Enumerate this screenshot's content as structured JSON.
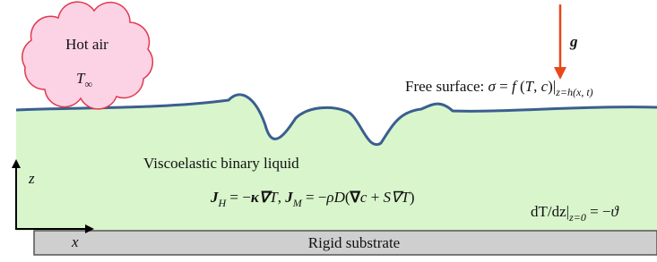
{
  "cloud": {
    "label": "Hot air",
    "symbol": "T",
    "subscript": "∞"
  },
  "gravity": {
    "label": "g"
  },
  "free_surface": {
    "label": "Free surface: ",
    "equation": [
      "σ",
      " = ",
      "f",
      " (",
      "T",
      ", ",
      "c",
      ")|"
    ],
    "subscript": "z=h(x, t)"
  },
  "liquid": {
    "label": "Viscoelastic binary liquid",
    "flux_equation": [
      "J",
      "H",
      " = −",
      "κ∇",
      "T",
      ", ",
      "J",
      "M",
      " = −",
      "ρD",
      "(",
      "∇",
      "c",
      " + ",
      "S∇",
      "T",
      ")"
    ]
  },
  "axes": {
    "z": "z",
    "x": "x"
  },
  "boundary_condition": [
    "dT/dz|",
    "z=0",
    " = −",
    "ϑ"
  ],
  "substrate": {
    "label": "Rigid substrate"
  }
}
